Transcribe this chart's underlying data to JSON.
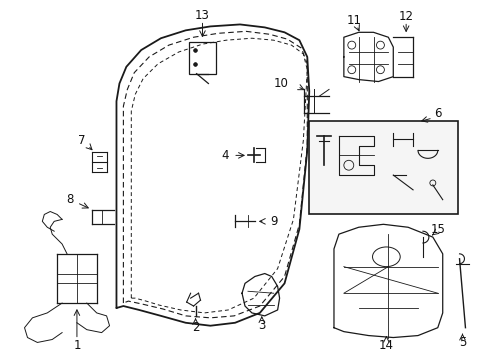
{
  "bg_color": "#ffffff",
  "fig_width": 4.89,
  "fig_height": 3.6,
  "dpi": 100,
  "line_color": "#1a1a1a",
  "label_fontsize": 8.5
}
